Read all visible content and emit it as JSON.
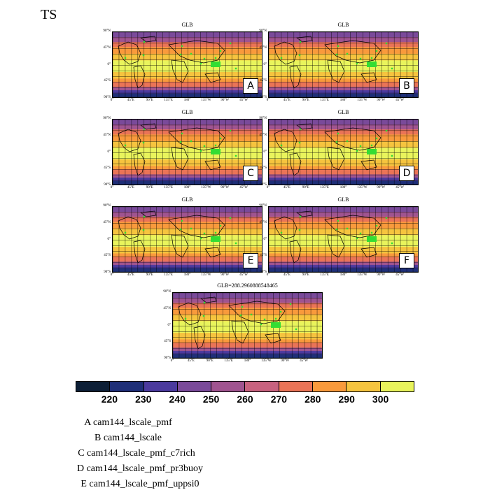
{
  "page_title": "TS",
  "chart_data": {
    "type": "heatmap",
    "title": "TS",
    "panels": [
      {
        "title": "GLB",
        "letter": "A"
      },
      {
        "title": "GLB",
        "letter": "B"
      },
      {
        "title": "GLB",
        "letter": "C"
      },
      {
        "title": "GLB",
        "letter": "D"
      },
      {
        "title": "GLB",
        "letter": "E"
      },
      {
        "title": "GLB",
        "letter": "F"
      },
      {
        "title": "GLB=288.2960888548465",
        "letter": ""
      }
    ],
    "lat_ticks": [
      "90°N",
      "45°N",
      "0°",
      "45°S",
      "90°S"
    ],
    "lon_ticks": [
      "0°",
      "45°E",
      "90°E",
      "135°E",
      "180°",
      "135°W",
      "90°W",
      "45°W"
    ],
    "colorbar": {
      "ticks": [
        "220",
        "230",
        "240",
        "250",
        "260",
        "270",
        "280",
        "290",
        "300"
      ],
      "colors": [
        "#0d1f36",
        "#1f2f78",
        "#4b3a9e",
        "#7a4a9a",
        "#a05490",
        "#c8627f",
        "#ea7457",
        "#f99a3c",
        "#f6c43f",
        "#e9f45c"
      ]
    },
    "legend": [
      "A  cam144_lscale_pmf",
      "B  cam144_lscale",
      "C  cam144_lscale_pmf_c7rich",
      "D  cam144_lscale_pmf_pr3buoy",
      "E  cam144_lscale_pmf_uppsi0"
    ]
  }
}
